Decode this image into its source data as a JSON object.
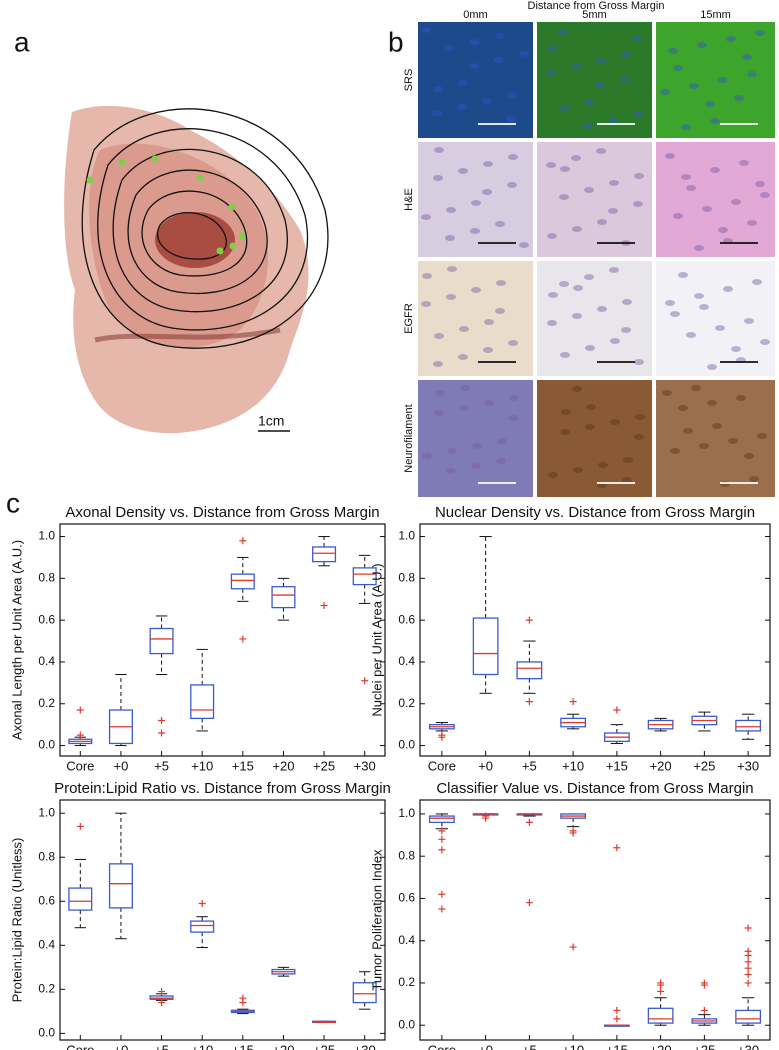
{
  "panels": {
    "a": {
      "label": "a",
      "scale": "1cm"
    },
    "b": {
      "label": "b",
      "header": "Distance from Gross Margin",
      "columns": [
        "0mm",
        "5mm",
        "15mm"
      ],
      "rows": [
        "SRS",
        "H&E",
        "EGFR",
        "Neurofilament"
      ]
    },
    "c": {
      "label": "c"
    }
  },
  "chart_data": [
    {
      "type": "box",
      "title": "Axonal Density vs. Distance from Gross Margin",
      "ylabel": "Axonal Length per Unit Area (A.U.)",
      "categories": [
        "Core",
        "+0",
        "+5",
        "+10",
        "+15",
        "+20",
        "+25",
        "+30"
      ],
      "boxes": [
        {
          "min": 0.0,
          "q1": 0.01,
          "median": 0.02,
          "q3": 0.03,
          "max": 0.04,
          "outliers": [
            0.17,
            0.05
          ]
        },
        {
          "min": 0.0,
          "q1": 0.01,
          "median": 0.09,
          "q3": 0.17,
          "max": 0.34,
          "outliers": []
        },
        {
          "min": 0.34,
          "q1": 0.44,
          "median": 0.51,
          "q3": 0.56,
          "max": 0.62,
          "outliers": [
            0.12,
            0.06
          ]
        },
        {
          "min": 0.07,
          "q1": 0.13,
          "median": 0.17,
          "q3": 0.29,
          "max": 0.46,
          "outliers": []
        },
        {
          "min": 0.69,
          "q1": 0.75,
          "median": 0.79,
          "q3": 0.82,
          "max": 0.9,
          "outliers": [
            0.98,
            0.51
          ]
        },
        {
          "min": 0.6,
          "q1": 0.66,
          "median": 0.72,
          "q3": 0.76,
          "max": 0.8,
          "outliers": []
        },
        {
          "min": 0.86,
          "q1": 0.88,
          "median": 0.92,
          "q3": 0.95,
          "max": 1.0,
          "outliers": [
            0.67
          ]
        },
        {
          "min": 0.68,
          "q1": 0.77,
          "median": 0.82,
          "q3": 0.85,
          "max": 0.91,
          "outliers": [
            0.31
          ]
        }
      ],
      "ylim": [
        -0.05,
        1.06
      ],
      "yticks": [
        {
          "value": 0,
          "label": "0.0"
        },
        0.2,
        0.4,
        0.6,
        0.8,
        {
          "value": 1,
          "label": "1.0"
        }
      ],
      "box_color": "#3a5bd0",
      "median_color": "#e03a2a",
      "outlier_color": "#e03a2a"
    },
    {
      "type": "box",
      "title": "Nuclear Density vs. Distance from Gross Margin",
      "ylabel": "Nuclei per Unit Area (A.U.)",
      "categories": [
        "Core",
        "+0",
        "+5",
        "+10",
        "+15",
        "+20",
        "+25",
        "+30"
      ],
      "boxes": [
        {
          "min": 0.07,
          "q1": 0.08,
          "median": 0.09,
          "q3": 0.1,
          "max": 0.11,
          "outliers": [
            0.05,
            0.04
          ]
        },
        {
          "min": 0.25,
          "q1": 0.34,
          "median": 0.44,
          "q3": 0.61,
          "max": 1.0,
          "outliers": []
        },
        {
          "min": 0.25,
          "q1": 0.32,
          "median": 0.37,
          "q3": 0.4,
          "max": 0.5,
          "outliers": [
            0.6,
            0.21
          ]
        },
        {
          "min": 0.08,
          "q1": 0.09,
          "median": 0.11,
          "q3": 0.13,
          "max": 0.15,
          "outliers": [
            0.21
          ]
        },
        {
          "min": 0.01,
          "q1": 0.02,
          "median": 0.04,
          "q3": 0.06,
          "max": 0.1,
          "outliers": [
            0.17
          ]
        },
        {
          "min": 0.07,
          "q1": 0.08,
          "median": 0.1,
          "q3": 0.12,
          "max": 0.13,
          "outliers": []
        },
        {
          "min": 0.07,
          "q1": 0.1,
          "median": 0.12,
          "q3": 0.14,
          "max": 0.16,
          "outliers": []
        },
        {
          "min": 0.03,
          "q1": 0.07,
          "median": 0.09,
          "q3": 0.12,
          "max": 0.15,
          "outliers": []
        }
      ],
      "ylim": [
        -0.05,
        1.06
      ],
      "yticks": [
        {
          "value": 0,
          "label": "0.0"
        },
        0.2,
        0.4,
        0.6,
        0.8,
        {
          "value": 1,
          "label": "1.0"
        }
      ],
      "box_color": "#3a5bd0",
      "median_color": "#e03a2a",
      "outlier_color": "#e03a2a"
    },
    {
      "type": "box",
      "title": "Protein:Lipid Ratio vs. Distance from Gross Margin",
      "ylabel": "Protein:Lipid Ratio (Unitless)",
      "categories": [
        "Core",
        "+0",
        "+5",
        "+10",
        "+15",
        "+20",
        "+25",
        "+30"
      ],
      "boxes": [
        {
          "min": 0.48,
          "q1": 0.56,
          "median": 0.6,
          "q3": 0.66,
          "max": 0.79,
          "outliers": [
            0.94
          ]
        },
        {
          "min": 0.43,
          "q1": 0.57,
          "median": 0.68,
          "q3": 0.77,
          "max": 1.0,
          "outliers": []
        },
        {
          "min": 0.15,
          "q1": 0.155,
          "median": 0.16,
          "q3": 0.17,
          "max": 0.18,
          "outliers": [
            0.19,
            0.14
          ]
        },
        {
          "min": 0.39,
          "q1": 0.46,
          "median": 0.49,
          "q3": 0.51,
          "max": 0.53,
          "outliers": [
            0.59
          ]
        },
        {
          "min": 0.09,
          "q1": 0.095,
          "median": 0.1,
          "q3": 0.105,
          "max": 0.11,
          "outliers": [
            0.16,
            0.14
          ]
        },
        {
          "min": 0.26,
          "q1": 0.27,
          "median": 0.28,
          "q3": 0.29,
          "max": 0.3,
          "outliers": []
        },
        {
          "min": 0.05,
          "q1": 0.05,
          "median": 0.05,
          "q3": 0.055,
          "max": 0.055,
          "outliers": []
        },
        {
          "min": 0.11,
          "q1": 0.14,
          "median": 0.18,
          "q3": 0.23,
          "max": 0.28,
          "outliers": []
        }
      ],
      "ylim": [
        -0.03,
        1.06
      ],
      "yticks": [
        {
          "value": 0,
          "label": "0.0"
        },
        0.2,
        0.4,
        0.6,
        0.8,
        {
          "value": 1,
          "label": "1.0"
        }
      ],
      "box_color": "#3a5bd0",
      "median_color": "#e03a2a",
      "outlier_color": "#e03a2a"
    },
    {
      "type": "box",
      "title": "Classifier Value vs. Distance from Gross Margin",
      "ylabel": "Tumor Poliferation Index",
      "categories": [
        "Core",
        "+0",
        "+5",
        "+10",
        "+15",
        "+20",
        "+25",
        "+30"
      ],
      "boxes": [
        {
          "min": 0.93,
          "q1": 0.96,
          "median": 0.98,
          "q3": 0.99,
          "max": 1.0,
          "outliers": [
            0.83,
            0.62,
            0.55,
            0.88,
            0.92
          ]
        },
        {
          "min": 1.0,
          "q1": 1.0,
          "median": 1.0,
          "q3": 1.0,
          "max": 1.0,
          "outliers": [
            0.99,
            0.98
          ]
        },
        {
          "min": 0.99,
          "q1": 1.0,
          "median": 1.0,
          "q3": 1.0,
          "max": 1.0,
          "outliers": [
            0.96,
            0.58
          ]
        },
        {
          "min": 0.94,
          "q1": 0.98,
          "median": 0.99,
          "q3": 1.0,
          "max": 1.0,
          "outliers": [
            0.91,
            0.37,
            0.92
          ]
        },
        {
          "min": 0,
          "q1": 0,
          "median": 0,
          "q3": 0,
          "max": 0,
          "outliers": [
            0.84,
            0.07,
            0.03
          ]
        },
        {
          "min": 0,
          "q1": 0.01,
          "median": 0.03,
          "q3": 0.08,
          "max": 0.13,
          "outliers": [
            0.19,
            0.16,
            0.2
          ]
        },
        {
          "min": 0,
          "q1": 0.01,
          "median": 0.02,
          "q3": 0.03,
          "max": 0.05,
          "outliers": [
            0.19,
            0.07,
            0.2
          ]
        },
        {
          "min": 0,
          "q1": 0.01,
          "median": 0.03,
          "q3": 0.07,
          "max": 0.13,
          "outliers": [
            0.46,
            0.35,
            0.3,
            0.27,
            0.2,
            0.24,
            0.33
          ]
        }
      ],
      "ylim": [
        -0.07,
        1.066
      ],
      "yticks": [
        {
          "value": 0,
          "label": "0.0"
        },
        0.2,
        0.4,
        0.6,
        0.8,
        {
          "value": 1,
          "label": "1.0"
        }
      ],
      "box_color": "#3a5bd0",
      "median_color": "#e03a2a",
      "outlier_color": "#e03a2a"
    }
  ]
}
